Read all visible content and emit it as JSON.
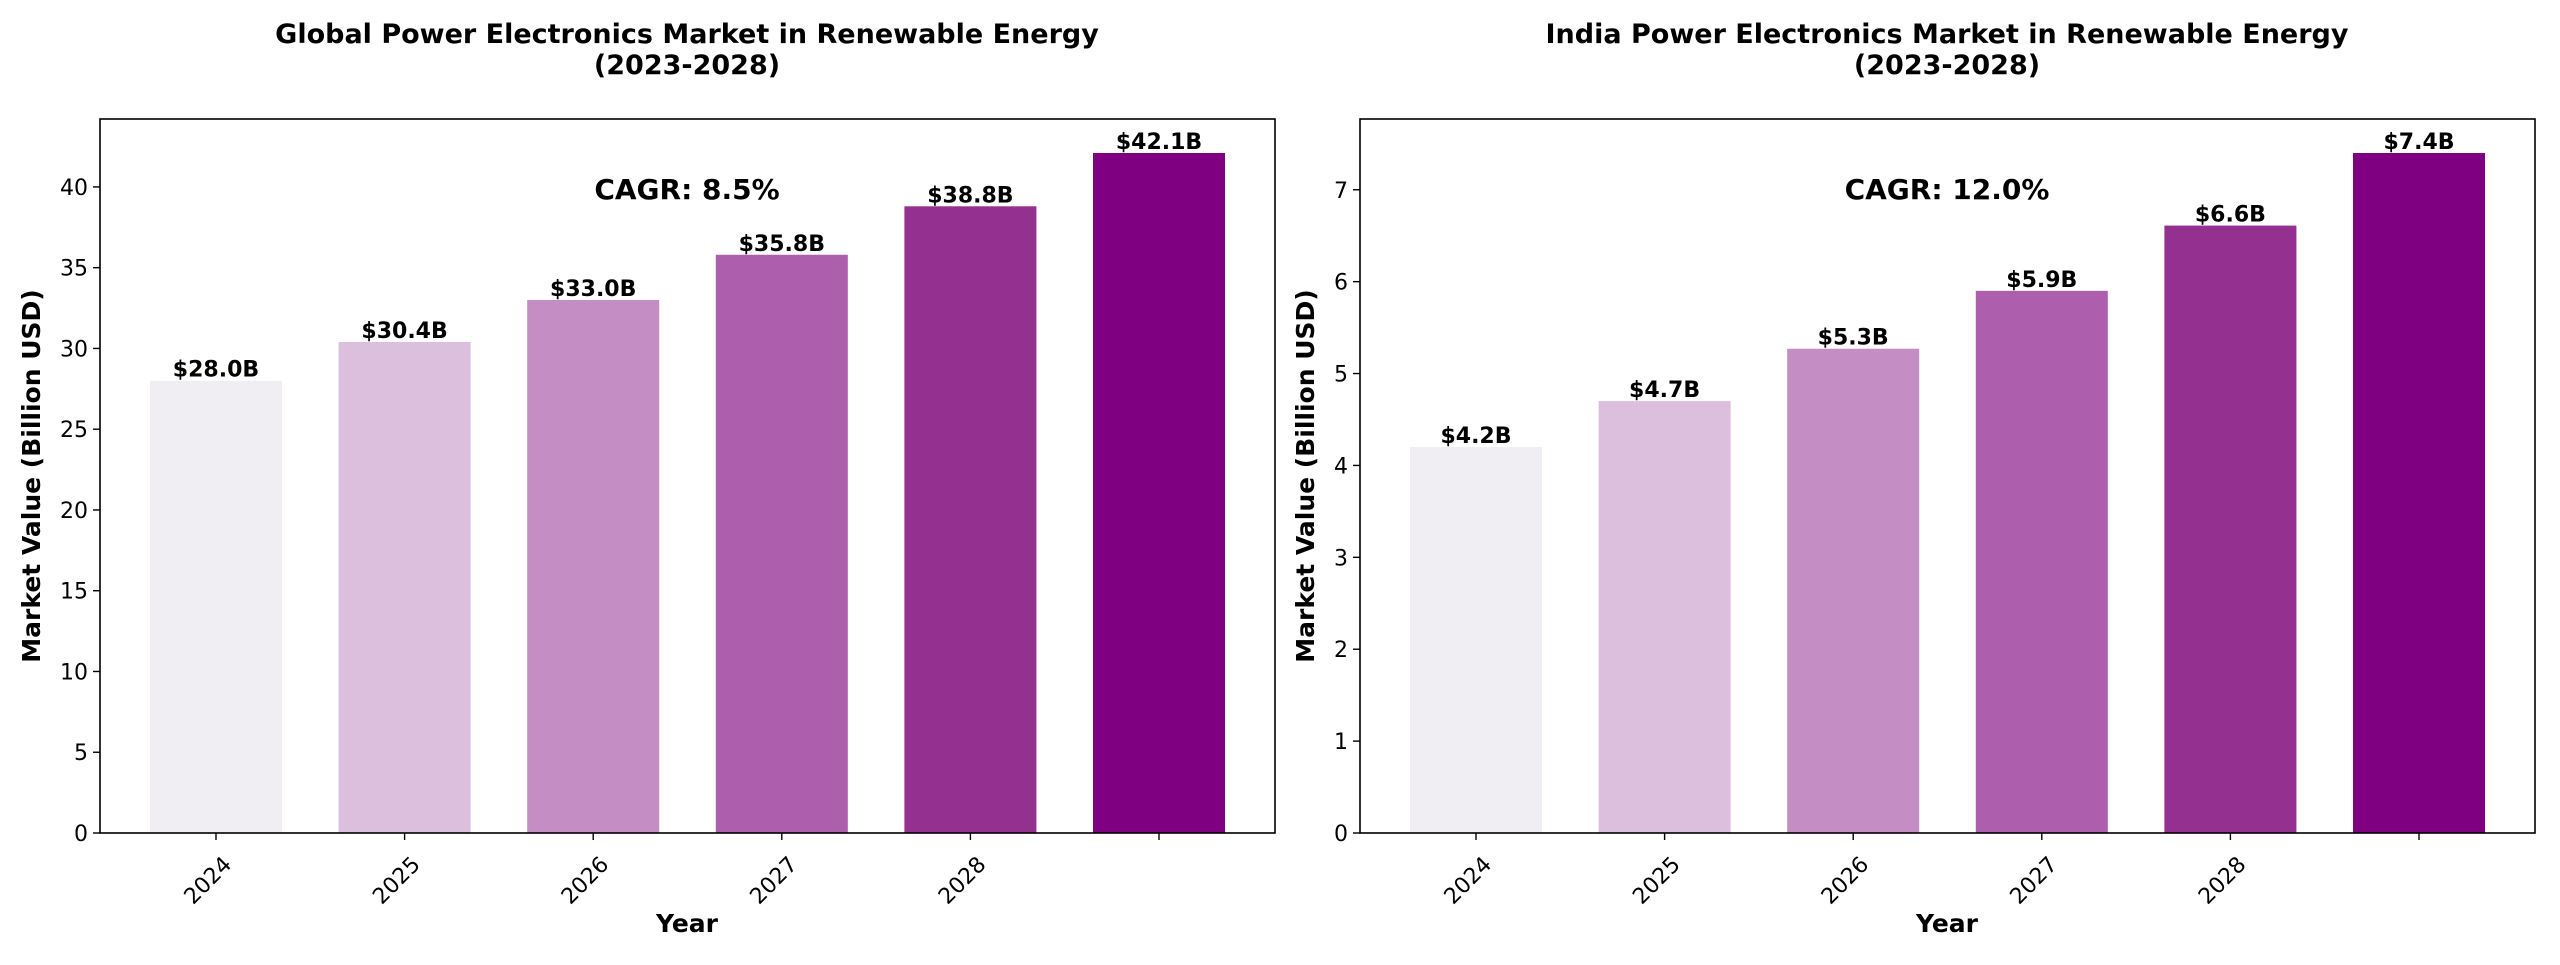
{
  "chart_data": [
    {
      "type": "bar",
      "title_lines": [
        "Global Power Electronics Market in Renewable Energy",
        "(2023-2028)"
      ],
      "xlabel": "Year",
      "ylabel": "Market Value (Billion USD)",
      "tick_labels": [
        "2024",
        "2025",
        "2026",
        "2027",
        "2028",
        ""
      ],
      "values": [
        28.0,
        30.4,
        33.0,
        35.8,
        38.8,
        42.1
      ],
      "value_labels": [
        "$28.0B",
        "$30.4B",
        "$33.0B",
        "$35.8B",
        "$38.8B",
        "$42.1B"
      ],
      "colors": [
        "#f0eef2",
        "#dcbfdc",
        "#c48ec4",
        "#ad5fad",
        "#94308f",
        "#7f0080"
      ],
      "ylim": [
        0,
        44.205
      ],
      "yticks": [
        0,
        5,
        10,
        15,
        20,
        25,
        30,
        35,
        40
      ],
      "annotation": "CAGR: 8.5%"
    },
    {
      "type": "bar",
      "title_lines": [
        "India Power Electronics Market in Renewable Energy",
        "(2023-2028)"
      ],
      "xlabel": "Year",
      "ylabel": "Market Value (Billion USD)",
      "tick_labels": [
        "2024",
        "2025",
        "2026",
        "2027",
        "2028",
        ""
      ],
      "values": [
        4.2,
        4.7,
        5.27,
        5.9,
        6.61,
        7.4
      ],
      "value_labels": [
        "$4.2B",
        "$4.7B",
        "$5.3B",
        "$5.9B",
        "$6.6B",
        "$7.4B"
      ],
      "colors": [
        "#f0eef2",
        "#dcbfdc",
        "#c48ec4",
        "#ad5fad",
        "#94308f",
        "#7f0080"
      ],
      "ylim": [
        0,
        7.77
      ],
      "yticks": [
        0,
        1,
        2,
        3,
        4,
        5,
        6,
        7
      ],
      "annotation": "CAGR: 12.0%"
    }
  ]
}
